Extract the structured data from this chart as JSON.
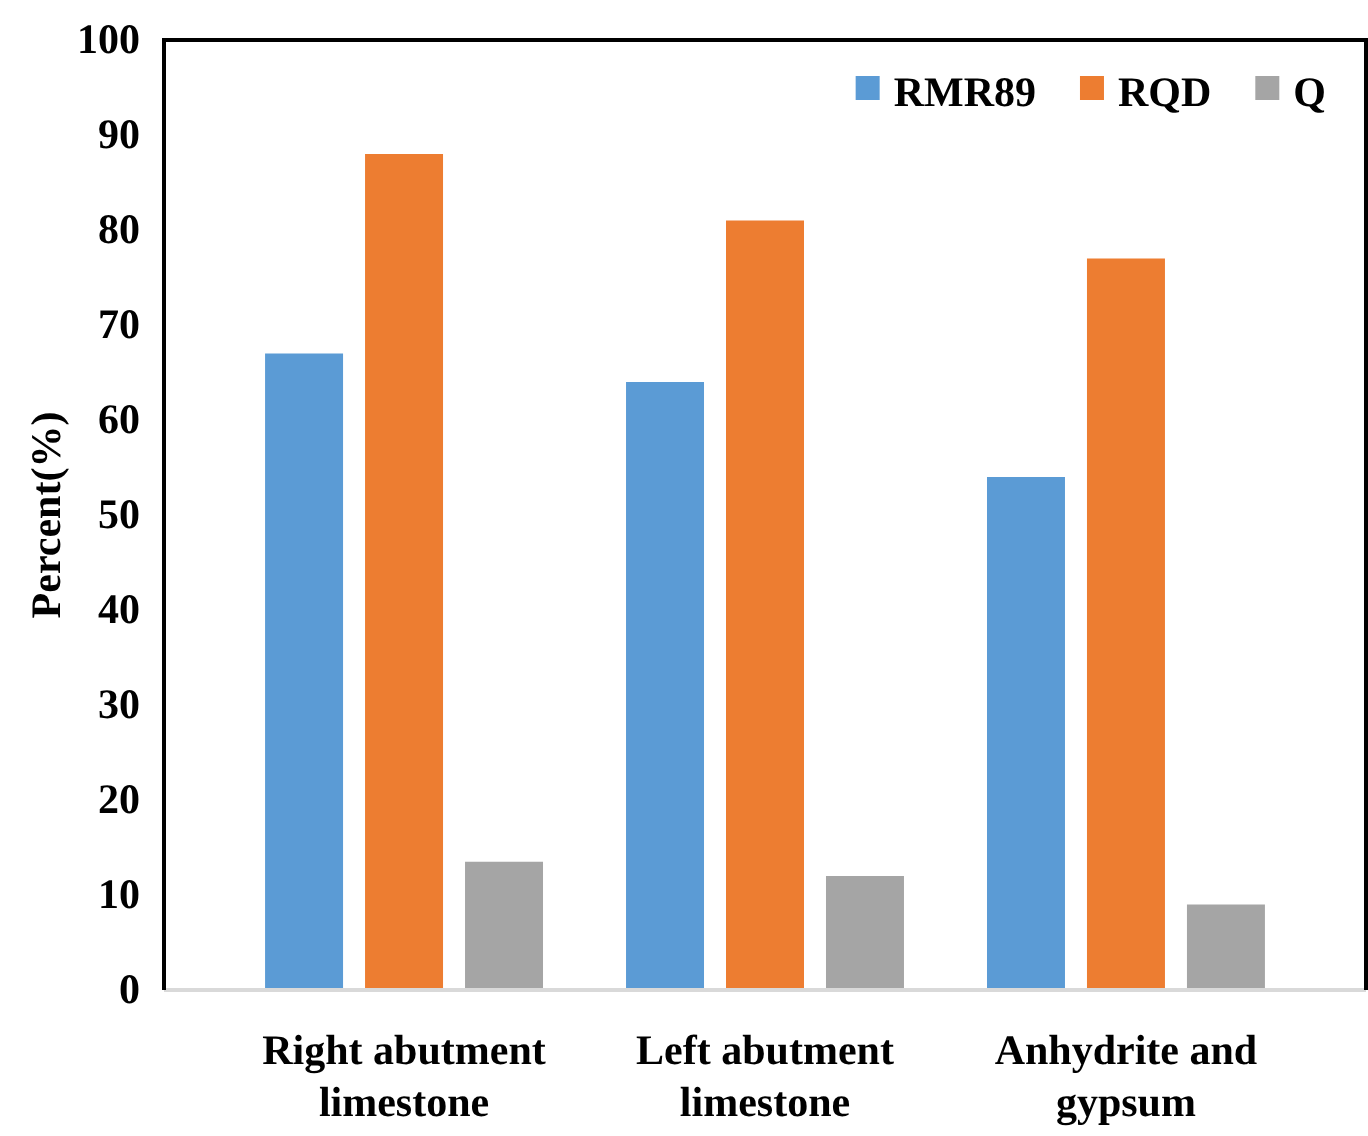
{
  "chart_data": {
    "type": "bar",
    "ylabel": "Percent(%)",
    "categories": [
      "Right abutment limestone",
      "Left abutment limestone",
      "Anhydrite and gypsum"
    ],
    "series": [
      {
        "name": "RMR89",
        "color": "#5b9bd5",
        "values": [
          67,
          64,
          54
        ]
      },
      {
        "name": "RQD",
        "color": "#ed7d31",
        "values": [
          88,
          81,
          77
        ]
      },
      {
        "name": "Q",
        "color": "#a5a5a5",
        "values": [
          13.5,
          12,
          9
        ]
      }
    ],
    "ylim": [
      0,
      100
    ],
    "yticks": [
      0,
      10,
      20,
      30,
      40,
      50,
      60,
      70,
      80,
      90,
      100
    ],
    "grid": false,
    "legend": "top right"
  }
}
